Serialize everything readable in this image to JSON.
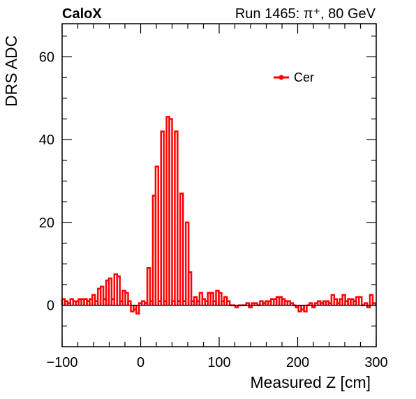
{
  "header": {
    "left_text": "CaloX",
    "right_text": "Run 1465:   π⁺, 80 GeV"
  },
  "chart_data": {
    "type": "line",
    "title": "",
    "xlabel": "Measured Z [cm]",
    "ylabel": "DRS ADC",
    "xlim": [
      -100,
      300
    ],
    "ylim": [
      -10,
      68
    ],
    "grid": false,
    "legend_position": "top-right",
    "x_ticks": [
      {
        "value": -100,
        "label": "−100"
      },
      {
        "value": 0,
        "label": "0"
      },
      {
        "value": 100,
        "label": "100"
      },
      {
        "value": 200,
        "label": "200"
      },
      {
        "value": 300,
        "label": "300"
      }
    ],
    "y_ticks": [
      {
        "value": 0,
        "label": "0"
      },
      {
        "value": 20,
        "label": "20"
      },
      {
        "value": 40,
        "label": "40"
      },
      {
        "value": 60,
        "label": "60"
      }
    ],
    "reference_line": {
      "y": 0,
      "color": "#000000"
    },
    "series": [
      {
        "name": "Cer",
        "color": "#ff0000",
        "bin_width": 3.5,
        "bin_start": -100,
        "values": [
          1.5,
          1.0,
          0.5,
          1.5,
          1.0,
          1.0,
          1.5,
          1.5,
          1.5,
          1.0,
          1.5,
          2.5,
          1.0,
          4.0,
          4.5,
          1.5,
          6.0,
          6.5,
          1.5,
          7.5,
          7.0,
          1.0,
          3.5,
          3.0,
          1.0,
          -1.5,
          -1.0,
          -2.0,
          0.5,
          1.0,
          0.5,
          9.0,
          1.0,
          26.5,
          33.5,
          1.0,
          42.0,
          1.0,
          45.5,
          45.0,
          1.0,
          42.0,
          1.0,
          27.0,
          1.0,
          20.0,
          8.0,
          1.0,
          2.0,
          1.0,
          3.0,
          1.5,
          1.0,
          3.0,
          3.0,
          1.0,
          3.5,
          3.0,
          1.0,
          2.0,
          1.0,
          0.0,
          0.0,
          -0.5,
          0.0,
          0.0,
          0.0,
          0.5,
          -0.5,
          0.5,
          0.5,
          0.0,
          1.0,
          0.5,
          1.0,
          1.0,
          1.5,
          1.5,
          2.0,
          2.0,
          1.5,
          1.0,
          1.0,
          0.5,
          0.0,
          -0.5,
          -1.5,
          -1.0,
          -1.5,
          0.0,
          0.5,
          -0.5,
          0.5,
          1.0,
          0.5,
          1.0,
          1.0,
          0.5,
          2.5,
          1.5,
          0.5,
          1.5,
          2.5,
          1.0,
          1.5,
          1.5,
          1.0,
          2.0,
          2.0,
          0.0,
          0.5,
          -0.5,
          2.5,
          0.5
        ]
      }
    ]
  }
}
